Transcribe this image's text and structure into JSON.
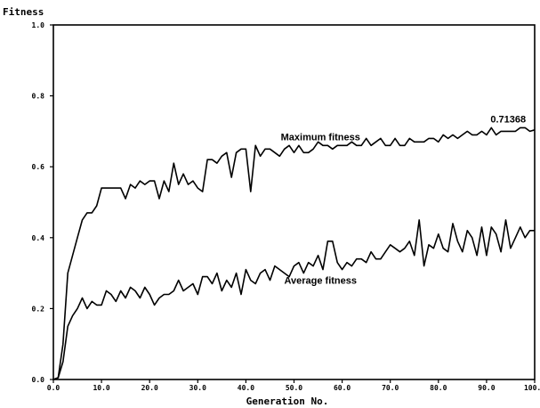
{
  "chart_data": {
    "type": "line",
    "title": "",
    "ylabel": "Fitness",
    "xlabel": "Generation No.",
    "xlim": [
      0,
      100
    ],
    "ylim": [
      0,
      1
    ],
    "xticks": [
      "0.0",
      "10.0",
      "20.0",
      "30.0",
      "40.0",
      "50.0",
      "60.0",
      "70.0",
      "80.0",
      "90.0",
      "100.0"
    ],
    "yticks": [
      "0.0",
      "0.2",
      "0.4",
      "0.6",
      "0.8",
      "1.0"
    ],
    "grid": false,
    "annotations": [
      {
        "text": "Maximum fitness",
        "x": 55.5,
        "y": 0.675
      },
      {
        "text": "0.71368",
        "x": 94.5,
        "y": 0.725
      },
      {
        "text": "Average fitness",
        "x": 55.5,
        "y": 0.27
      }
    ],
    "series": [
      {
        "label": "Maximum fitness",
        "x": [
          0,
          1,
          2,
          3,
          4,
          5,
          6,
          7,
          8,
          9,
          10,
          11,
          12,
          13,
          14,
          15,
          16,
          17,
          18,
          19,
          20,
          21,
          22,
          23,
          24,
          25,
          26,
          27,
          28,
          29,
          30,
          31,
          32,
          33,
          34,
          35,
          36,
          37,
          38,
          39,
          40,
          41,
          42,
          43,
          44,
          45,
          46,
          47,
          48,
          49,
          50,
          51,
          52,
          53,
          54,
          55,
          56,
          57,
          58,
          59,
          60,
          61,
          62,
          63,
          64,
          65,
          66,
          67,
          68,
          69,
          70,
          71,
          72,
          73,
          74,
          75,
          76,
          77,
          78,
          79,
          80,
          81,
          82,
          83,
          84,
          85,
          86,
          87,
          88,
          89,
          90,
          91,
          92,
          93,
          94,
          95,
          96,
          97,
          98,
          99,
          100
        ],
        "values": [
          0.0,
          0.005,
          0.1,
          0.3,
          0.35,
          0.4,
          0.45,
          0.47,
          0.47,
          0.49,
          0.54,
          0.54,
          0.54,
          0.54,
          0.54,
          0.51,
          0.55,
          0.54,
          0.56,
          0.55,
          0.56,
          0.56,
          0.51,
          0.56,
          0.53,
          0.61,
          0.55,
          0.58,
          0.55,
          0.56,
          0.54,
          0.53,
          0.62,
          0.62,
          0.61,
          0.63,
          0.64,
          0.57,
          0.64,
          0.65,
          0.65,
          0.53,
          0.66,
          0.63,
          0.65,
          0.65,
          0.64,
          0.63,
          0.65,
          0.66,
          0.64,
          0.66,
          0.64,
          0.64,
          0.65,
          0.67,
          0.66,
          0.66,
          0.65,
          0.66,
          0.66,
          0.66,
          0.67,
          0.66,
          0.66,
          0.68,
          0.66,
          0.67,
          0.68,
          0.66,
          0.66,
          0.68,
          0.66,
          0.66,
          0.68,
          0.67,
          0.67,
          0.67,
          0.68,
          0.68,
          0.67,
          0.69,
          0.68,
          0.69,
          0.68,
          0.69,
          0.7,
          0.69,
          0.69,
          0.7,
          0.69,
          0.71,
          0.69,
          0.7,
          0.7,
          0.7,
          0.7,
          0.71,
          0.71,
          0.7,
          0.704
        ]
      },
      {
        "label": "Average fitness",
        "x": [
          0,
          1,
          2,
          3,
          4,
          5,
          6,
          7,
          8,
          9,
          10,
          11,
          12,
          13,
          14,
          15,
          16,
          17,
          18,
          19,
          20,
          21,
          22,
          23,
          24,
          25,
          26,
          27,
          28,
          29,
          30,
          31,
          32,
          33,
          34,
          35,
          36,
          37,
          38,
          39,
          40,
          41,
          42,
          43,
          44,
          45,
          46,
          47,
          48,
          49,
          50,
          51,
          52,
          53,
          54,
          55,
          56,
          57,
          58,
          59,
          60,
          61,
          62,
          63,
          64,
          65,
          66,
          67,
          68,
          69,
          70,
          71,
          72,
          73,
          74,
          75,
          76,
          77,
          78,
          79,
          80,
          81,
          82,
          83,
          84,
          85,
          86,
          87,
          88,
          89,
          90,
          91,
          92,
          93,
          94,
          95,
          96,
          97,
          98,
          99,
          100
        ],
        "values": [
          0.0,
          0.005,
          0.05,
          0.15,
          0.18,
          0.2,
          0.23,
          0.2,
          0.22,
          0.21,
          0.21,
          0.25,
          0.24,
          0.22,
          0.25,
          0.23,
          0.26,
          0.25,
          0.23,
          0.26,
          0.24,
          0.21,
          0.23,
          0.24,
          0.24,
          0.25,
          0.28,
          0.25,
          0.26,
          0.27,
          0.24,
          0.29,
          0.29,
          0.27,
          0.3,
          0.25,
          0.28,
          0.26,
          0.3,
          0.24,
          0.31,
          0.28,
          0.27,
          0.3,
          0.31,
          0.28,
          0.32,
          0.31,
          0.3,
          0.29,
          0.32,
          0.33,
          0.3,
          0.33,
          0.32,
          0.35,
          0.31,
          0.39,
          0.39,
          0.33,
          0.31,
          0.33,
          0.32,
          0.34,
          0.34,
          0.33,
          0.36,
          0.34,
          0.34,
          0.36,
          0.38,
          0.37,
          0.36,
          0.37,
          0.39,
          0.35,
          0.45,
          0.32,
          0.38,
          0.37,
          0.41,
          0.37,
          0.36,
          0.44,
          0.39,
          0.36,
          0.42,
          0.4,
          0.35,
          0.43,
          0.35,
          0.43,
          0.41,
          0.36,
          0.45,
          0.37,
          0.4,
          0.43,
          0.4,
          0.42,
          0.42
        ]
      }
    ]
  }
}
